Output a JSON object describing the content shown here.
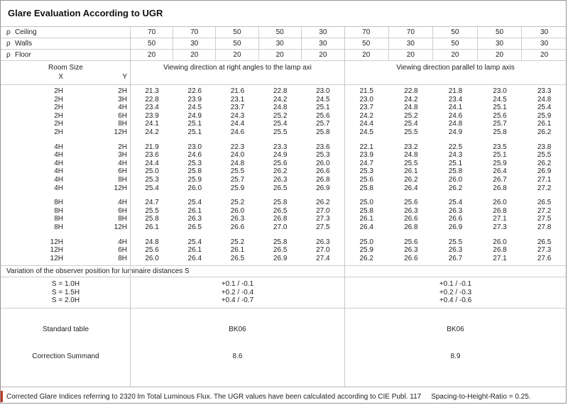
{
  "title": "Glare Evaluation According to UGR",
  "reflectance": {
    "rows": [
      {
        "symbol": "ρ",
        "label": "Ceiling",
        "values": [
          "70",
          "70",
          "50",
          "50",
          "30",
          "70",
          "70",
          "50",
          "50",
          "30"
        ]
      },
      {
        "symbol": "ρ",
        "label": "Walls",
        "values": [
          "50",
          "30",
          "50",
          "30",
          "30",
          "50",
          "30",
          "50",
          "30",
          "30"
        ]
      },
      {
        "symbol": "ρ",
        "label": "Floor",
        "values": [
          "20",
          "20",
          "20",
          "20",
          "20",
          "20",
          "20",
          "20",
          "20",
          "20"
        ]
      }
    ]
  },
  "header": {
    "room_size": "Room Size",
    "x": "X",
    "y": "Y",
    "right_angles": "Viewing direction at right angles to the lamp axi",
    "parallel": "Viewing direction parallel to lamp axis"
  },
  "ugr_groups": [
    {
      "rows": [
        {
          "x": "2H",
          "y": "2H",
          "values": [
            "21.3",
            "22.6",
            "21.6",
            "22.8",
            "23.0",
            "21.5",
            "22.8",
            "21.8",
            "23.0",
            "23.3"
          ]
        },
        {
          "x": "2H",
          "y": "3H",
          "values": [
            "22.8",
            "23.9",
            "23.1",
            "24.2",
            "24.5",
            "23.0",
            "24.2",
            "23.4",
            "24.5",
            "24.8"
          ]
        },
        {
          "x": "2H",
          "y": "4H",
          "values": [
            "23.4",
            "24.5",
            "23.7",
            "24.8",
            "25.1",
            "23.7",
            "24.8",
            "24.1",
            "25.1",
            "25.4"
          ]
        },
        {
          "x": "2H",
          "y": "6H",
          "values": [
            "23.9",
            "24.9",
            "24.3",
            "25.2",
            "25.6",
            "24.2",
            "25.2",
            "24.6",
            "25.6",
            "25.9"
          ]
        },
        {
          "x": "2H",
          "y": "8H",
          "values": [
            "24.1",
            "25.1",
            "24.4",
            "25.4",
            "25.7",
            "24.4",
            "25.4",
            "24.8",
            "25.7",
            "26.1"
          ]
        },
        {
          "x": "2H",
          "y": "12H",
          "values": [
            "24.2",
            "25.1",
            "24.6",
            "25.5",
            "25.8",
            "24.5",
            "25.5",
            "24.9",
            "25.8",
            "26.2"
          ]
        }
      ]
    },
    {
      "rows": [
        {
          "x": "4H",
          "y": "2H",
          "values": [
            "21.9",
            "23.0",
            "22.3",
            "23.3",
            "23.6",
            "22.1",
            "23.2",
            "22.5",
            "23.5",
            "23.8"
          ]
        },
        {
          "x": "4H",
          "y": "3H",
          "values": [
            "23.6",
            "24.6",
            "24.0",
            "24.9",
            "25.3",
            "23.9",
            "24.8",
            "24.3",
            "25.1",
            "25.5"
          ]
        },
        {
          "x": "4H",
          "y": "4H",
          "values": [
            "24.4",
            "25.3",
            "24.8",
            "25.6",
            "26.0",
            "24.7",
            "25.5",
            "25.1",
            "25.9",
            "26.2"
          ]
        },
        {
          "x": "4H",
          "y": "6H",
          "values": [
            "25.0",
            "25.8",
            "25.5",
            "26.2",
            "26.6",
            "25.3",
            "26.1",
            "25.8",
            "26.4",
            "26.9"
          ]
        },
        {
          "x": "4H",
          "y": "8H",
          "values": [
            "25.3",
            "25.9",
            "25.7",
            "26.3",
            "26.8",
            "25.6",
            "26.2",
            "26.0",
            "26.7",
            "27.1"
          ]
        },
        {
          "x": "4H",
          "y": "12H",
          "values": [
            "25.4",
            "26.0",
            "25.9",
            "26.5",
            "26.9",
            "25.8",
            "26.4",
            "26.2",
            "26.8",
            "27.2"
          ]
        }
      ]
    },
    {
      "rows": [
        {
          "x": "8H",
          "y": "4H",
          "values": [
            "24.7",
            "25.4",
            "25.2",
            "25.8",
            "26.2",
            "25.0",
            "25.6",
            "25.4",
            "26.0",
            "26.5"
          ]
        },
        {
          "x": "8H",
          "y": "6H",
          "values": [
            "25.5",
            "26.1",
            "26.0",
            "26.5",
            "27.0",
            "25.8",
            "26.3",
            "26.3",
            "26.8",
            "27.2"
          ]
        },
        {
          "x": "8H",
          "y": "8H",
          "values": [
            "25.8",
            "26.3",
            "26.3",
            "26.8",
            "27.3",
            "26.1",
            "26.6",
            "26.6",
            "27.1",
            "27.5"
          ]
        },
        {
          "x": "8H",
          "y": "12H",
          "values": [
            "26.1",
            "26.5",
            "26.6",
            "27.0",
            "27.5",
            "26.4",
            "26.8",
            "26.9",
            "27.3",
            "27.8"
          ]
        }
      ]
    },
    {
      "rows": [
        {
          "x": "12H",
          "y": "4H",
          "values": [
            "24.8",
            "25.4",
            "25.2",
            "25.8",
            "26.3",
            "25.0",
            "25.6",
            "25.5",
            "26.0",
            "26.5"
          ]
        },
        {
          "x": "12H",
          "y": "6H",
          "values": [
            "25.6",
            "26.1",
            "26.1",
            "26.5",
            "27.0",
            "25.9",
            "26.3",
            "26.3",
            "26.8",
            "27.3"
          ]
        },
        {
          "x": "12H",
          "y": "8H",
          "values": [
            "26.0",
            "26.4",
            "26.5",
            "26.9",
            "27.4",
            "26.2",
            "26.6",
            "26.7",
            "27.1",
            "27.6"
          ]
        }
      ]
    }
  ],
  "variation": {
    "label": "Variation of the observer position for luminaire distances S",
    "rows": [
      {
        "s": "S = 1.0H",
        "right_angles": "+0.1 / -0.1",
        "parallel": "+0.1 / -0.1"
      },
      {
        "s": "S = 1.5H",
        "right_angles": "+0.2 / -0.4",
        "parallel": "+0.2 / -0.3"
      },
      {
        "s": "S = 2.0H",
        "right_angles": "+0.4 / -0.7",
        "parallel": "+0.4 / -0.6"
      }
    ]
  },
  "standard_table": {
    "label": "Standard table",
    "right_angles": "BK06",
    "parallel": "BK06"
  },
  "correction_summand": {
    "label": "Correction Summand",
    "right_angles": "8.6",
    "parallel": "8.9"
  },
  "footer": {
    "text": "Corrected Glare Indices referring to 2320 lm Total Luminous Flux. The UGR values have been calculated according to CIE Publ. 117",
    "ratio": "Spacing-to-Height-Ratio = 0.25."
  },
  "colors": {
    "border": "#cdcdcd",
    "outer_border": "#949494",
    "text": "#222222",
    "accent_mark": "#c0392b"
  }
}
